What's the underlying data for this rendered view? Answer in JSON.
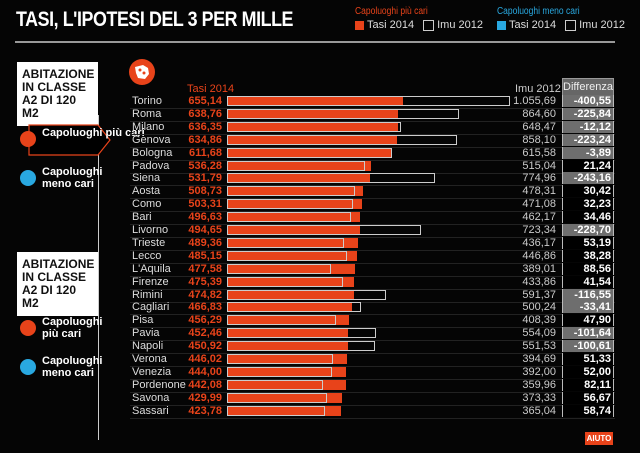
{
  "title": "TASI, L'IPOTESI DEL 3 PER MILLE",
  "legend": {
    "group1": {
      "title": "Capoluoghi più cari",
      "tasi": "Tasi 2014",
      "imu": "Imu 2012",
      "color": "#e8431a"
    },
    "group2": {
      "title": "Capoluoghi meno cari",
      "tasi": "Tasi 2014",
      "imu": "Imu 2012",
      "color": "#29a8e0"
    }
  },
  "sidebar": {
    "blocks": [
      {
        "title": "ABITAZIONE IN CLASSE A2 DI 120 M2",
        "items": [
          {
            "label": "Capoluoghi più cari",
            "color": "#e8431a",
            "selected": true
          },
          {
            "label": "Capoluoghi meno cari",
            "color": "#29a8e0",
            "selected": false
          }
        ]
      },
      {
        "title": "ABITAZIONE IN CLASSE A2 DI 120 M2",
        "items": [
          {
            "label": "Capoluoghi più cari",
            "color": "#e8431a",
            "selected": false
          },
          {
            "label": "Capoluoghi meno cari",
            "color": "#29a8e0",
            "selected": false
          }
        ]
      }
    ]
  },
  "headers": {
    "tasi": "Tasi 2014",
    "imu": "Imu 2012",
    "diff": "Differenza"
  },
  "chart_data": {
    "type": "bar",
    "orientation": "horizontal",
    "categories": [
      "Torino",
      "Roma",
      "Milano",
      "Genova",
      "Bologna",
      "Padova",
      "Siena",
      "Aosta",
      "Como",
      "Bari",
      "Livorno",
      "Trieste",
      "Lecco",
      "L'Aquila",
      "Firenze",
      "Rimini",
      "Cagliari",
      "Pisa",
      "Pavia",
      "Napoli",
      "Verona",
      "Venezia",
      "Pordenone",
      "Savona",
      "Sassari"
    ],
    "series": [
      {
        "name": "Tasi 2014",
        "color": "#e8431a",
        "labels": [
          "655,14",
          "638,76",
          "636,35",
          "634,86",
          "611,68",
          "536,28",
          "531,79",
          "508,73",
          "503,31",
          "496,63",
          "494,65",
          "489,36",
          "485,15",
          "477,58",
          "475,39",
          "474,82",
          "466,83",
          "456,29",
          "452,46",
          "450,92",
          "446,02",
          "444,00",
          "442,08",
          "429,99",
          "423,78"
        ],
        "values": [
          655.14,
          638.76,
          636.35,
          634.86,
          611.68,
          536.28,
          531.79,
          508.73,
          503.31,
          496.63,
          494.65,
          489.36,
          485.15,
          477.58,
          475.39,
          474.82,
          466.83,
          456.29,
          452.46,
          450.92,
          446.02,
          444.0,
          442.08,
          429.99,
          423.78
        ]
      },
      {
        "name": "Imu 2012",
        "color": "outline",
        "labels": [
          "1.055,69",
          "864,60",
          "648,47",
          "858,10",
          "615,58",
          "515,04",
          "774,96",
          "478,31",
          "471,08",
          "462,17",
          "723,34",
          "436,17",
          "446,86",
          "389,01",
          "433,86",
          "591,37",
          "500,24",
          "408,39",
          "554,09",
          "551,53",
          "394,69",
          "392,00",
          "359,96",
          "373,33",
          "365,04"
        ],
        "values": [
          1055.69,
          864.6,
          648.47,
          858.1,
          615.58,
          515.04,
          774.96,
          478.31,
          471.08,
          462.17,
          723.34,
          436.17,
          446.86,
          389.01,
          433.86,
          591.37,
          500.24,
          408.39,
          554.09,
          551.53,
          394.69,
          392.0,
          359.96,
          373.33,
          365.04
        ]
      }
    ],
    "differenza": [
      "-400,55",
      "-225,84",
      "-12,12",
      "-223,24",
      "-3,89",
      "21,24",
      "-243,16",
      "30,42",
      "32,23",
      "34,46",
      "-228,70",
      "53,19",
      "38,28",
      "88,56",
      "41,54",
      "-116,55",
      "-33,41",
      "47,90",
      "-101,64",
      "-100,61",
      "51,33",
      "52,00",
      "82,11",
      "56,67",
      "58,74"
    ],
    "xlim": [
      0,
      1100
    ]
  },
  "help_button": "AIUTO"
}
